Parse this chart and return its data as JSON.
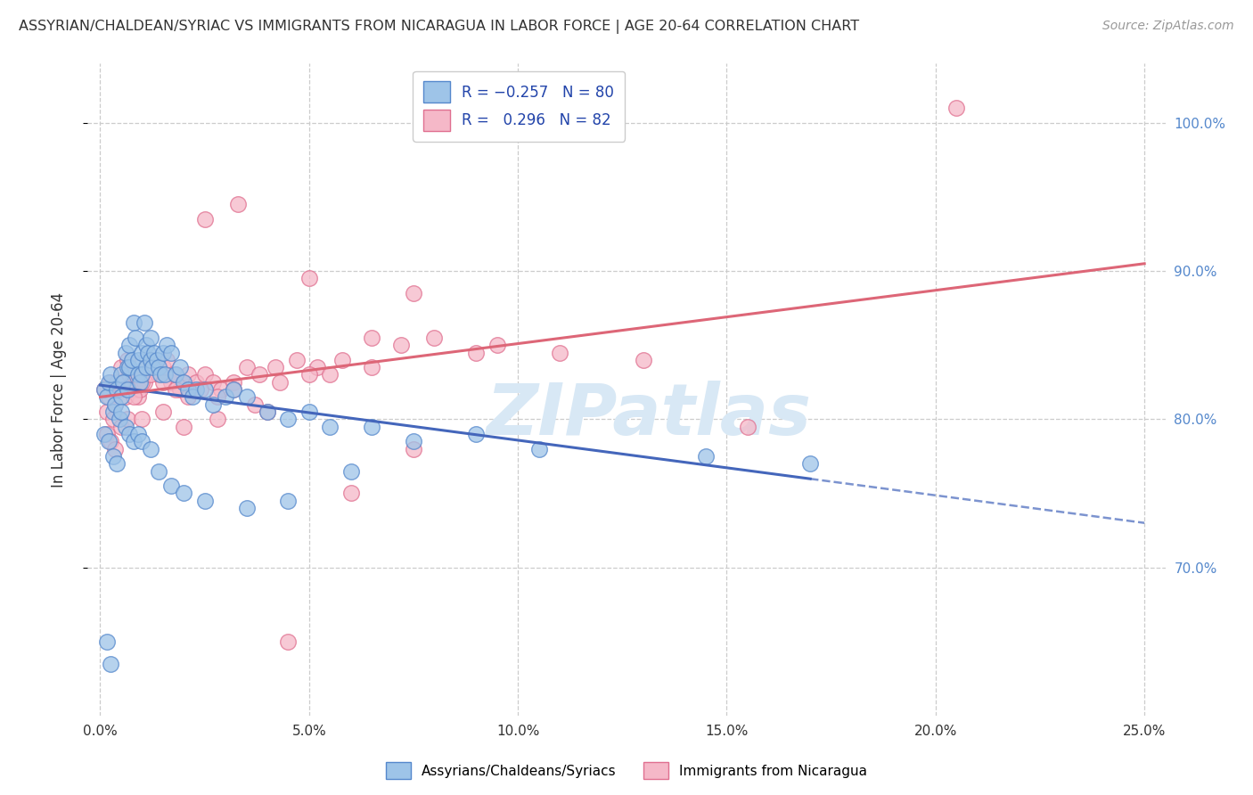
{
  "title": "ASSYRIAN/CHALDEAN/SYRIAC VS IMMIGRANTS FROM NICARAGUA IN LABOR FORCE | AGE 20-64 CORRELATION CHART",
  "source": "Source: ZipAtlas.com",
  "ylabel": "In Labor Force | Age 20-64",
  "xlabel_vals": [
    0.0,
    5.0,
    10.0,
    15.0,
    20.0,
    25.0
  ],
  "ylabel_vals": [
    70.0,
    80.0,
    90.0,
    100.0
  ],
  "xlim": [
    -0.3,
    25.5
  ],
  "ylim": [
    60.0,
    104.0
  ],
  "legend_label1": "R = -0.257   N = 80",
  "legend_label2": "R =  0.296   N = 82",
  "legend_label_bottom1": "Assyrians/Chaldeans/Syriacs",
  "legend_label_bottom2": "Immigrants from Nicaragua",
  "color_blue": "#9EC4E8",
  "color_pink": "#F5B8C8",
  "color_blue_edge": "#5588CC",
  "color_pink_edge": "#E07090",
  "color_blue_line": "#4466BB",
  "color_pink_line": "#DD6677",
  "watermark": "ZIPatlas",
  "watermark_color": "#D8E8F5",
  "blue_line_x0": 0.0,
  "blue_line_y0": 82.3,
  "blue_line_x1": 25.0,
  "blue_line_y1": 73.0,
  "blue_solid_end_x": 17.0,
  "pink_line_x0": 0.0,
  "pink_line_y0": 81.5,
  "pink_line_x1": 25.0,
  "pink_line_y1": 90.5,
  "blue_x": [
    0.1,
    0.15,
    0.2,
    0.25,
    0.3,
    0.35,
    0.4,
    0.45,
    0.5,
    0.5,
    0.55,
    0.6,
    0.65,
    0.65,
    0.7,
    0.7,
    0.75,
    0.8,
    0.85,
    0.9,
    0.9,
    0.95,
    1.0,
    1.0,
    1.05,
    1.1,
    1.1,
    1.15,
    1.2,
    1.2,
    1.25,
    1.3,
    1.35,
    1.4,
    1.45,
    1.5,
    1.55,
    1.6,
    1.7,
    1.8,
    1.9,
    2.0,
    2.1,
    2.2,
    2.3,
    2.5,
    2.7,
    3.0,
    3.2,
    3.5,
    4.0,
    4.5,
    5.0,
    5.5,
    6.5,
    7.5,
    9.0,
    10.5,
    14.5,
    17.0,
    0.1,
    0.2,
    0.3,
    0.4,
    0.5,
    0.6,
    0.7,
    0.8,
    0.9,
    1.0,
    1.2,
    1.4,
    1.7,
    2.0,
    2.5,
    3.5,
    4.5,
    6.0,
    0.15,
    0.25
  ],
  "blue_y": [
    82.0,
    81.5,
    82.5,
    83.0,
    80.5,
    81.0,
    82.0,
    80.0,
    83.0,
    81.5,
    82.5,
    84.5,
    83.5,
    82.0,
    85.0,
    83.5,
    84.0,
    86.5,
    85.5,
    84.0,
    83.0,
    82.5,
    84.5,
    83.0,
    86.5,
    85.0,
    83.5,
    84.5,
    85.5,
    84.0,
    83.5,
    84.5,
    84.0,
    83.5,
    83.0,
    84.5,
    83.0,
    85.0,
    84.5,
    83.0,
    83.5,
    82.5,
    82.0,
    81.5,
    82.0,
    82.0,
    81.0,
    81.5,
    82.0,
    81.5,
    80.5,
    80.0,
    80.5,
    79.5,
    79.5,
    78.5,
    79.0,
    78.0,
    77.5,
    77.0,
    79.0,
    78.5,
    77.5,
    77.0,
    80.5,
    79.5,
    79.0,
    78.5,
    79.0,
    78.5,
    78.0,
    76.5,
    75.5,
    75.0,
    74.5,
    74.0,
    74.5,
    76.5,
    65.0,
    63.5
  ],
  "pink_x": [
    0.1,
    0.15,
    0.2,
    0.25,
    0.3,
    0.35,
    0.4,
    0.5,
    0.55,
    0.6,
    0.65,
    0.7,
    0.75,
    0.8,
    0.85,
    0.9,
    0.95,
    1.0,
    1.05,
    1.1,
    1.2,
    1.3,
    1.4,
    1.5,
    1.6,
    1.7,
    1.8,
    1.9,
    2.0,
    2.1,
    2.2,
    2.3,
    2.5,
    2.7,
    2.9,
    3.2,
    3.5,
    3.8,
    4.2,
    4.7,
    5.2,
    5.8,
    6.5,
    7.2,
    8.0,
    9.5,
    11.0,
    13.0,
    15.5,
    20.5,
    0.15,
    0.25,
    0.35,
    0.5,
    0.65,
    0.8,
    1.0,
    1.2,
    1.5,
    1.8,
    2.1,
    2.4,
    2.8,
    3.2,
    3.7,
    4.3,
    5.0,
    1.0,
    1.5,
    2.0,
    2.8,
    4.0,
    5.5,
    2.5,
    3.3,
    5.0,
    7.5,
    6.5,
    9.0,
    7.5,
    6.0,
    4.5
  ],
  "pink_y": [
    82.0,
    80.5,
    81.5,
    82.5,
    80.0,
    81.0,
    82.5,
    83.5,
    82.0,
    81.5,
    84.0,
    83.0,
    82.5,
    83.0,
    82.0,
    81.5,
    82.0,
    83.0,
    82.5,
    83.5,
    84.0,
    83.5,
    83.0,
    83.5,
    84.0,
    82.5,
    83.0,
    82.0,
    82.5,
    83.0,
    82.0,
    82.5,
    83.0,
    82.5,
    82.0,
    82.5,
    83.5,
    83.0,
    83.5,
    84.0,
    83.5,
    84.0,
    83.5,
    85.0,
    85.5,
    85.0,
    84.5,
    84.0,
    79.5,
    101.0,
    79.0,
    78.5,
    78.0,
    79.5,
    80.0,
    81.5,
    82.5,
    83.0,
    82.5,
    82.0,
    81.5,
    82.0,
    81.5,
    82.0,
    81.0,
    82.5,
    83.0,
    80.0,
    80.5,
    79.5,
    80.0,
    80.5,
    83.0,
    93.5,
    94.5,
    89.5,
    88.5,
    85.5,
    84.5,
    78.0,
    75.0,
    65.0
  ]
}
